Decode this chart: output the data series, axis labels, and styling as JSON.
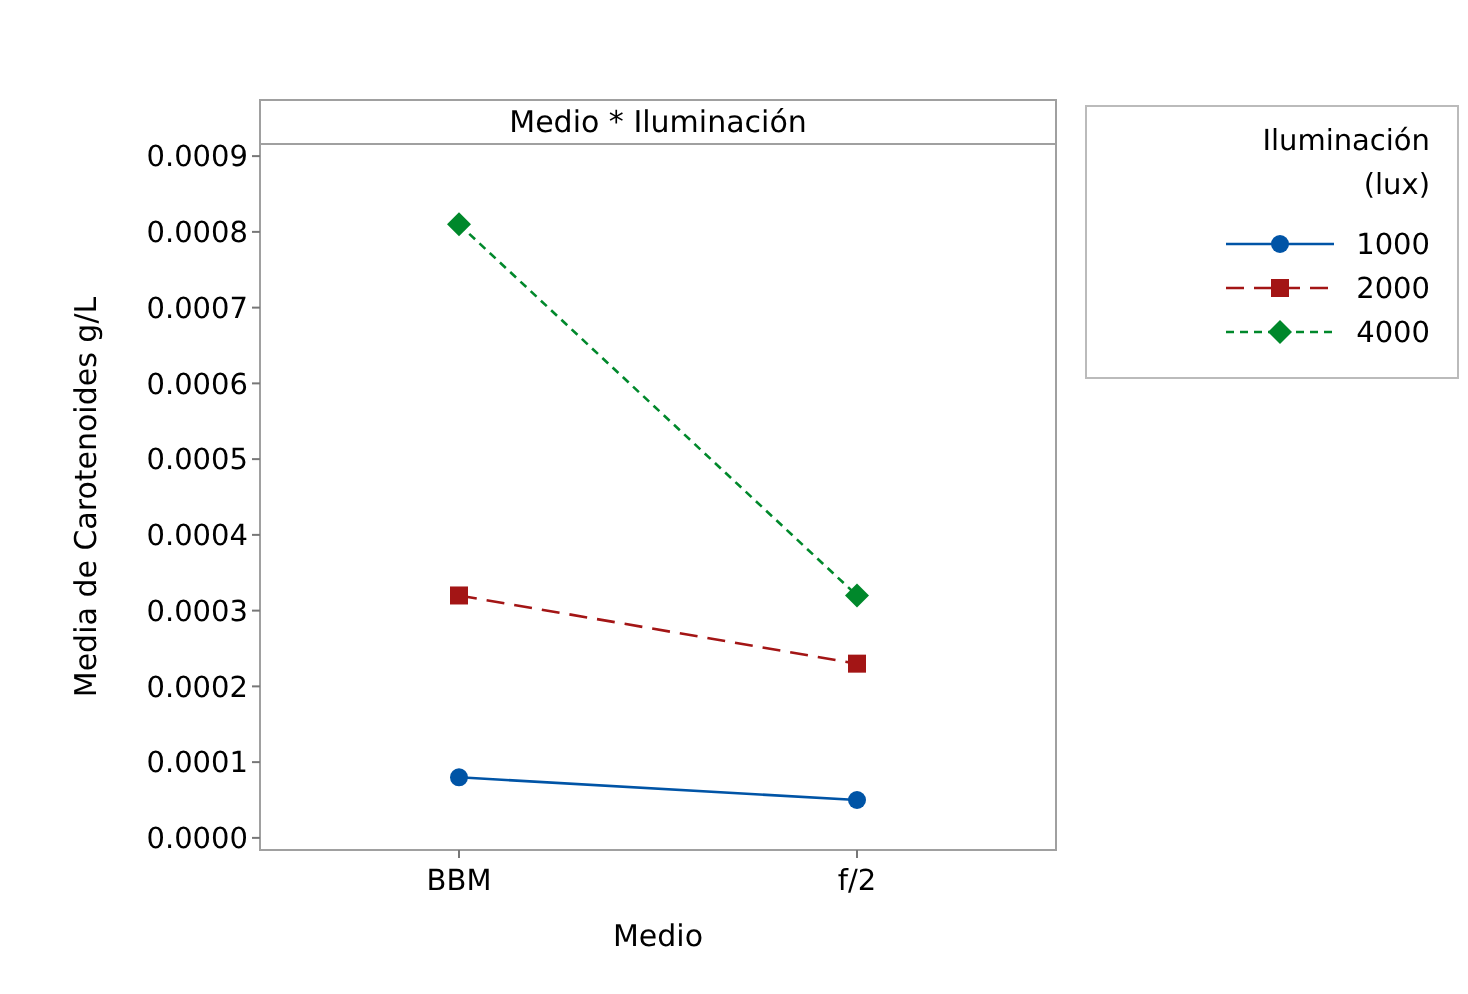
{
  "chart_data": {
    "type": "line",
    "title": "Medio * Iluminación",
    "xlabel": "Medio",
    "ylabel": "Media de Carotenoides g/L",
    "legend_title": "Iluminación\n(lux)",
    "legend": "right",
    "categories": [
      "BBM",
      "f/2"
    ],
    "series": [
      {
        "name": "1000",
        "color": "#0054a6",
        "values": [
          8e-05,
          5e-05
        ],
        "marker": "circle",
        "line_style": "solid"
      },
      {
        "name": "2000",
        "color": "#a31515",
        "values": [
          0.00032,
          0.00023
        ],
        "marker": "square",
        "line_style": "dashed"
      },
      {
        "name": "4000",
        "color": "#00882b",
        "values": [
          0.00081,
          0.00032
        ],
        "marker": "diamond",
        "line_style": "dotted"
      }
    ],
    "ylim": [
      -1.6e-05,
      0.000916
    ],
    "yticks": [
      {
        "value": 0,
        "label": "0.0000"
      },
      {
        "value": 0.0001,
        "label": "0.0001"
      },
      {
        "value": 0.0002,
        "label": "0.0002"
      },
      {
        "value": 0.0003,
        "label": "0.0003"
      },
      {
        "value": 0.0004,
        "label": "0.0004"
      },
      {
        "value": 0.0005,
        "label": "0.0005"
      },
      {
        "value": 0.0006,
        "label": "0.0006"
      },
      {
        "value": 0.0007,
        "label": "0.0007"
      },
      {
        "value": 0.0008,
        "label": "0.0008"
      },
      {
        "value": 0.0009,
        "label": "0.0009"
      }
    ],
    "grid": false
  }
}
